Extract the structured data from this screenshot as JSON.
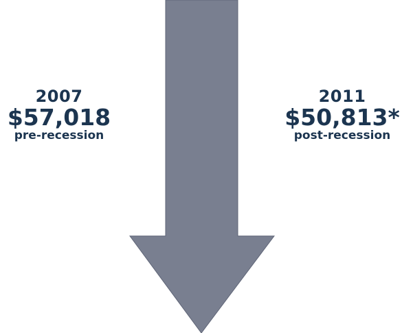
{
  "colors": {
    "text": "#1c3550",
    "arrow_fill": "#797f90",
    "arrow_stroke": "#5f6577",
    "background": "#ffffff"
  },
  "arrow": {
    "icon": "down-arrow-icon",
    "direction": "down"
  },
  "before": {
    "year": "2007",
    "amount": "$57,018",
    "caption": "pre-recession"
  },
  "after": {
    "year": "2011",
    "amount": "$50,813*",
    "caption": "post-recession"
  }
}
